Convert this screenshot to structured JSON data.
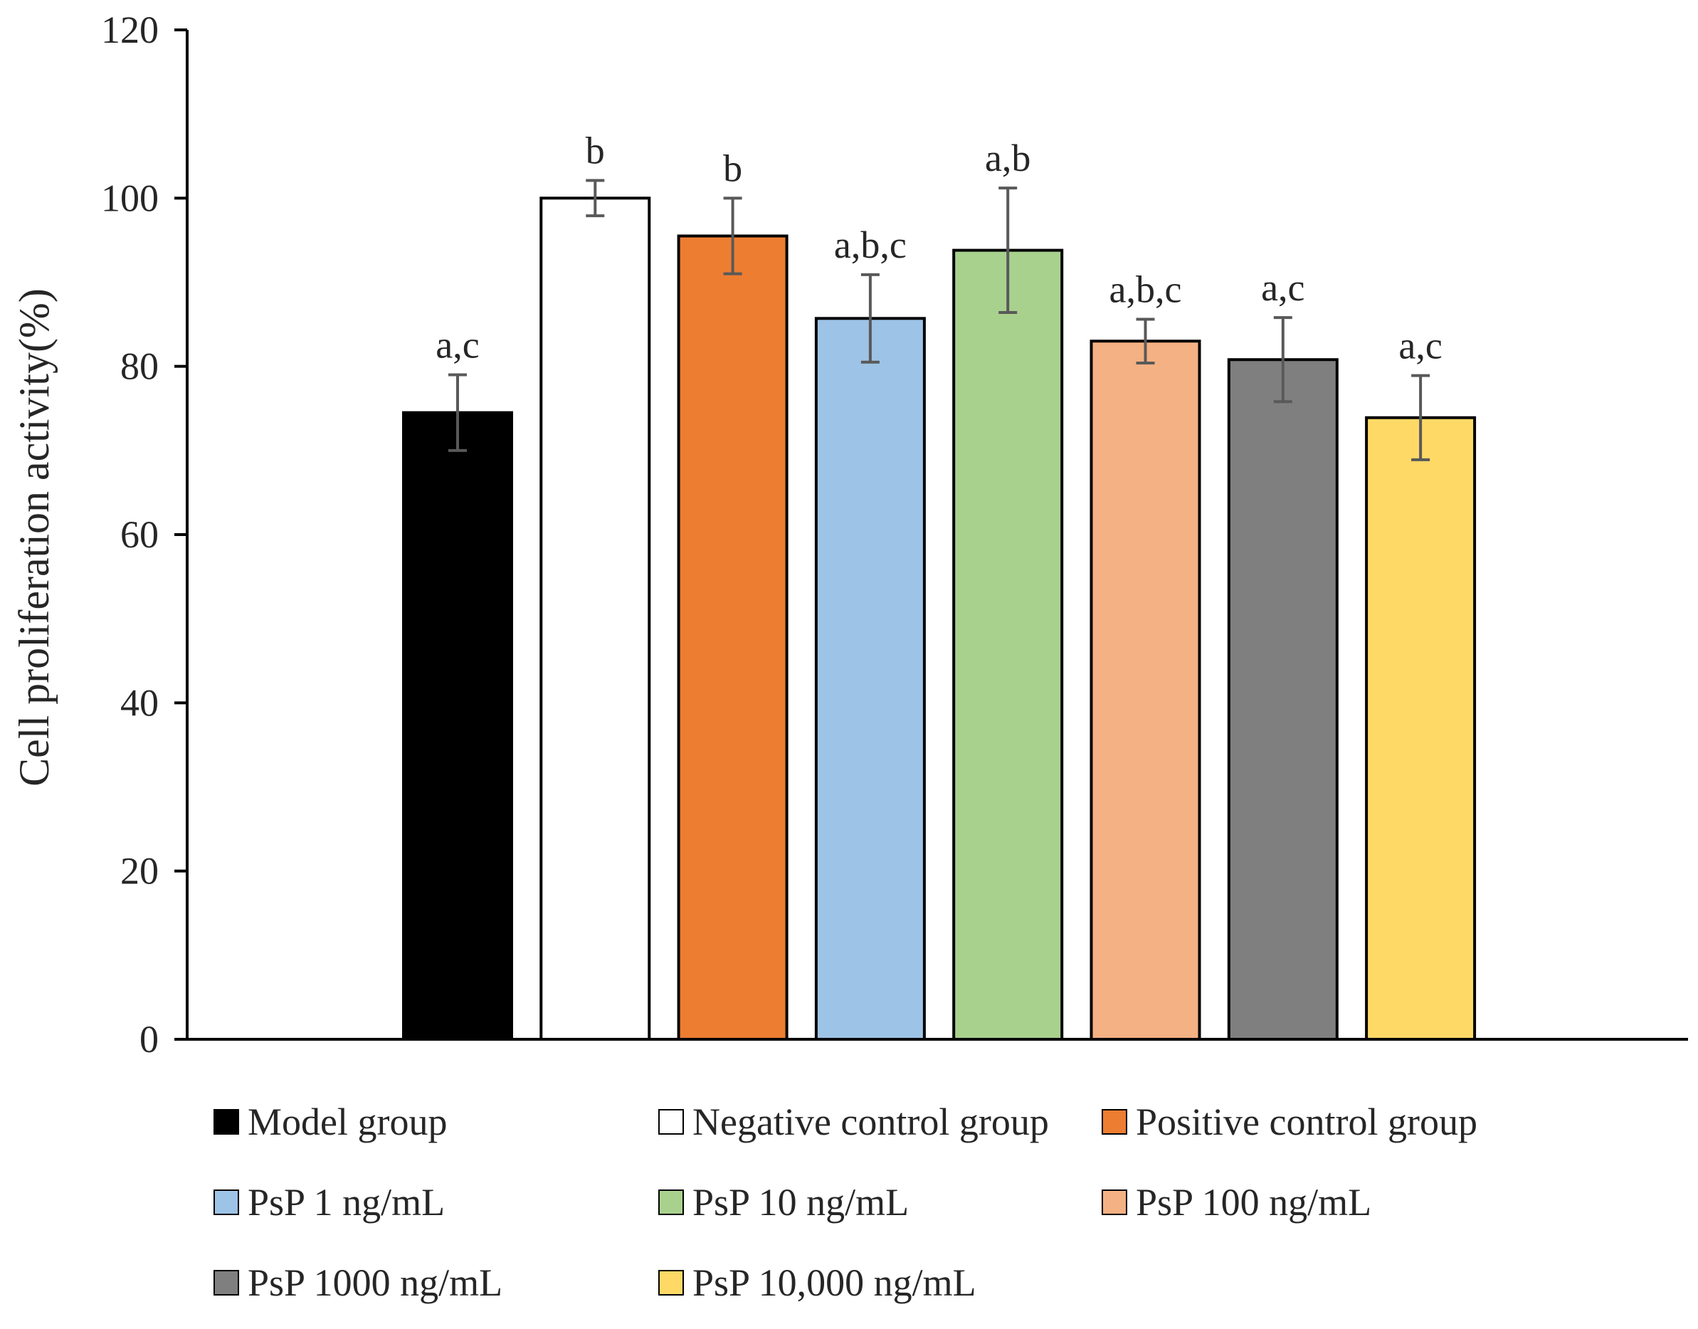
{
  "chart_data": {
    "type": "bar",
    "title": "",
    "xlabel": "",
    "ylabel": "Cell proliferation activity(%)",
    "ylim": [
      0,
      120
    ],
    "yticks": [
      0,
      20,
      40,
      60,
      80,
      100,
      120
    ],
    "grid": false,
    "legend_position": "bottom",
    "categories": [
      "Model group",
      "Negative control group",
      "Positive control group",
      "PsP 1 ng/mL",
      "PsP 10 ng/mL",
      "PsP 100 ng/mL",
      "PsP 1000 ng/mL",
      "PsP 10,000 ng/mL"
    ],
    "values": [
      74.5,
      100,
      95.5,
      85.7,
      93.8,
      83.0,
      80.8,
      73.9
    ],
    "errors": [
      4.5,
      2.1,
      4.5,
      5.2,
      7.4,
      2.6,
      5.0,
      5.0
    ],
    "significance_labels": [
      "a,c",
      "b",
      "b",
      "a,b,c",
      "a,b",
      "a,b,c",
      "a,c",
      "a,c"
    ],
    "colors": [
      "#000000",
      "#ffffff",
      "#ed7d31",
      "#9dc3e6",
      "#a9d18e",
      "#f4b183",
      "#7f7f7f",
      "#ffd966"
    ]
  }
}
